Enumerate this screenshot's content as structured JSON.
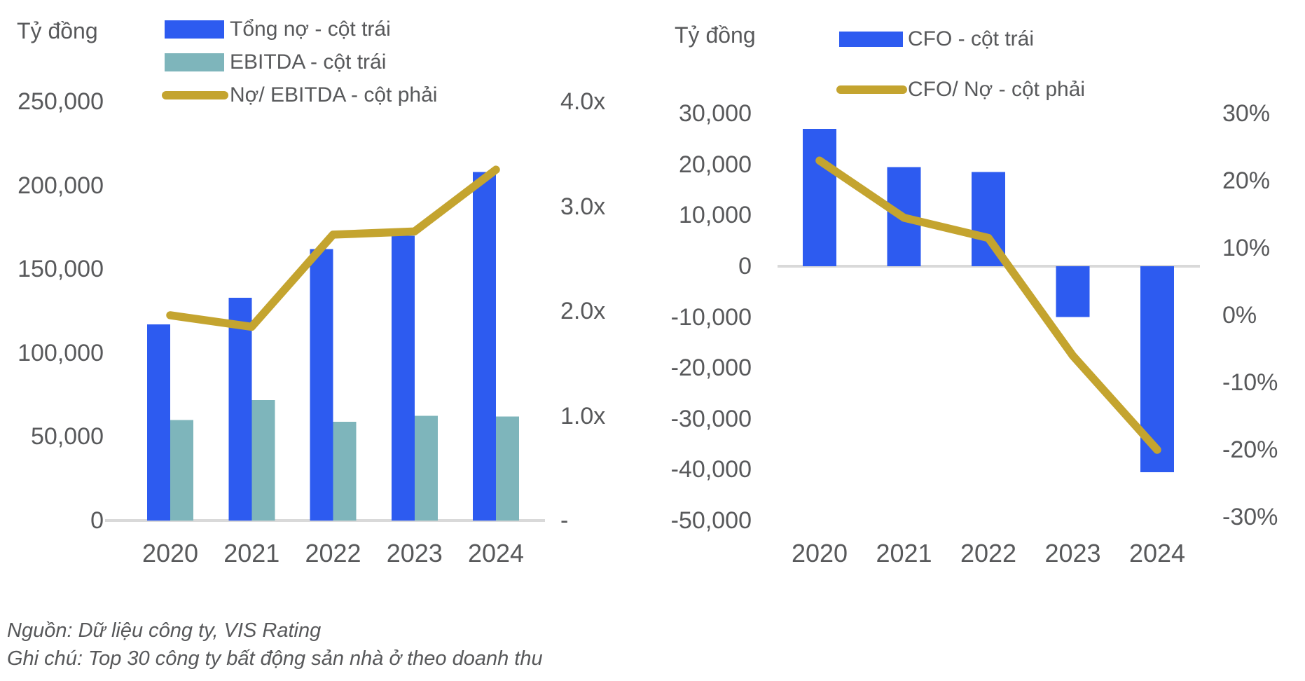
{
  "colors": {
    "blue": "#2d5bf0",
    "teal": "#7eb5bb",
    "gold": "#c4a42f",
    "text": "#58595b",
    "axis_line": "#d9d9d9"
  },
  "footer": {
    "source": "Nguồn: Dữ liệu công ty, VIS Rating",
    "note": "Ghi chú: Top 30 công ty bất động sản nhà ở theo doanh thu"
  },
  "chart_data": [
    {
      "type": "bar+line",
      "id": "debt-ebitda",
      "axis_title": "Tỷ đồng",
      "categories": [
        "2020",
        "2021",
        "2022",
        "2023",
        "2024"
      ],
      "bar_series": [
        {
          "name": "Tổng nợ - cột trái",
          "color": "blue",
          "axis": "left",
          "values": [
            117000,
            133000,
            162000,
            170000,
            208000
          ]
        },
        {
          "name": "EBITDA - cột trái",
          "color": "teal",
          "axis": "left",
          "values": [
            60000,
            72000,
            59000,
            62500,
            62000
          ]
        }
      ],
      "line_series": [
        {
          "name": "Nợ/ EBITDA - cột phải",
          "color": "gold",
          "axis": "right",
          "values": [
            1.96,
            1.85,
            2.73,
            2.76,
            3.35
          ]
        }
      ],
      "left_axis": {
        "range": [
          0,
          250000
        ],
        "ticks": [
          "250,000",
          "200,000",
          "150,000",
          "100,000",
          "50,000",
          "0"
        ]
      },
      "right_axis": {
        "range": [
          0,
          4
        ],
        "ticks": [
          "4.0x",
          "3.0x",
          "2.0x",
          "1.0x",
          "-"
        ]
      },
      "grid": "zero-line-only",
      "legend_position": "top"
    },
    {
      "type": "bar+line",
      "id": "cfo",
      "axis_title": "Tỷ đồng",
      "categories": [
        "2020",
        "2021",
        "2022",
        "2023",
        "2024"
      ],
      "bar_series": [
        {
          "name": "CFO - cột trái",
          "color": "blue",
          "axis": "left",
          "values": [
            27000,
            19500,
            18500,
            -10000,
            -40500
          ]
        }
      ],
      "line_series": [
        {
          "name": "CFO/ Nợ - cột phải",
          "color": "gold",
          "axis": "right",
          "values": [
            23,
            14.5,
            11.5,
            -6,
            -20
          ]
        }
      ],
      "left_axis": {
        "range": [
          -50000,
          30000
        ],
        "ticks": [
          "30,000",
          "20,000",
          "10,000",
          "0",
          "-10,000",
          "-20,000",
          "-30,000",
          "-40,000",
          "-50,000"
        ]
      },
      "right_axis": {
        "range": [
          -30,
          30
        ],
        "ticks": [
          "30%",
          "20%",
          "10%",
          "0%",
          "-10%",
          "-20%",
          "-30%"
        ]
      },
      "grid": "zero-line-only",
      "legend_position": "top"
    }
  ]
}
